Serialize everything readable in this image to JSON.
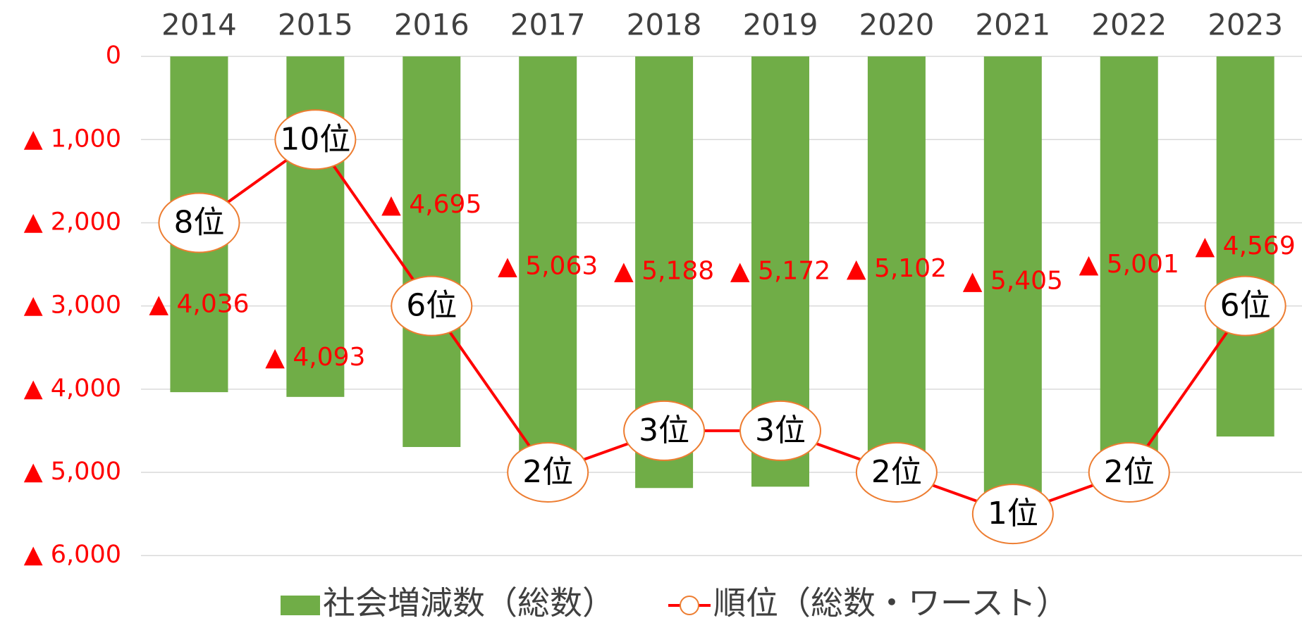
{
  "chart_data": {
    "type": "bar",
    "categories": [
      "2014",
      "2015",
      "2016",
      "2017",
      "2018",
      "2019",
      "2020",
      "2021",
      "2022",
      "2023"
    ],
    "series": [
      {
        "name": "社会増減数（総数）",
        "type": "bar",
        "color": "#70ad47",
        "values": [
          -4036,
          -4093,
          -4695,
          -5063,
          -5188,
          -5172,
          -5102,
          -5405,
          -5001,
          -4569
        ],
        "value_labels": [
          "▲ 4,036",
          "▲ 4,093",
          "▲ 4,695",
          "▲ 5,063",
          "▲ 5,188",
          "▲ 5,172",
          "▲ 5,102",
          "▲ 5,405",
          "▲ 5,001",
          "▲ 4,569"
        ]
      },
      {
        "name": "順位（総数・ワースト）",
        "type": "line",
        "axis": "y2",
        "color": "#ff0000",
        "marker_color": "#ed7d31",
        "values": [
          8,
          10,
          6,
          2,
          3,
          3,
          2,
          1,
          2,
          6
        ],
        "value_labels": [
          "8位",
          "10位",
          "6位",
          "2位",
          "3位",
          "3位",
          "2位",
          "1位",
          "2位",
          "6位"
        ]
      }
    ],
    "ylim": [
      0,
      -6000
    ],
    "yticks": [
      0,
      {
        "value": -1000,
        "label": "▲ 1,000"
      },
      {
        "value": -2000,
        "label": "▲ 2,000"
      },
      {
        "value": -3000,
        "label": "▲ 3,000"
      },
      {
        "value": -4000,
        "label": "▲ 4,000"
      },
      {
        "value": -5000,
        "label": "▲ 5,000"
      },
      {
        "value": -6000,
        "label": "▲ 6,000"
      }
    ],
    "y2lim": [
      0,
      12
    ],
    "grid": true,
    "legend": "bottom"
  }
}
